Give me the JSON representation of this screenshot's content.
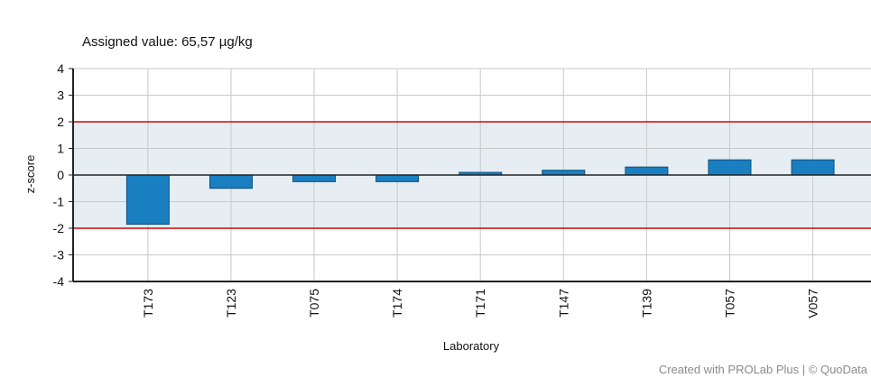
{
  "chart_data": {
    "type": "bar",
    "title": "",
    "subtitle": "Assigned value:  65,57 µg/kg",
    "xlabel": "Laboratory",
    "ylabel": "z-score",
    "ylim": [
      -4,
      4
    ],
    "yticks": [
      4,
      3,
      2,
      1,
      0,
      -1,
      -2,
      -3,
      -4
    ],
    "ytick_labels": [
      "4",
      "3",
      "2",
      "1",
      "0",
      "-1",
      "-2",
      "-3",
      "-4"
    ],
    "categories": [
      "T173",
      "T123",
      "T075",
      "T174",
      "T171",
      "T147",
      "T139",
      "T057",
      "V057"
    ],
    "values": [
      -1.85,
      -0.5,
      -0.25,
      -0.25,
      0.1,
      0.18,
      0.3,
      0.57,
      0.57
    ],
    "limits": [
      2,
      -2
    ],
    "acceptable_band": [
      -2,
      2
    ],
    "grid": true,
    "colors": {
      "bar": "#1a7fc1",
      "bar_edge": "#0c4f80",
      "band": "#e6eef3",
      "limit_line": "#e00000",
      "grid": "#c8c8c8"
    }
  },
  "credit": "Created with PROLab Plus | © QuoData"
}
